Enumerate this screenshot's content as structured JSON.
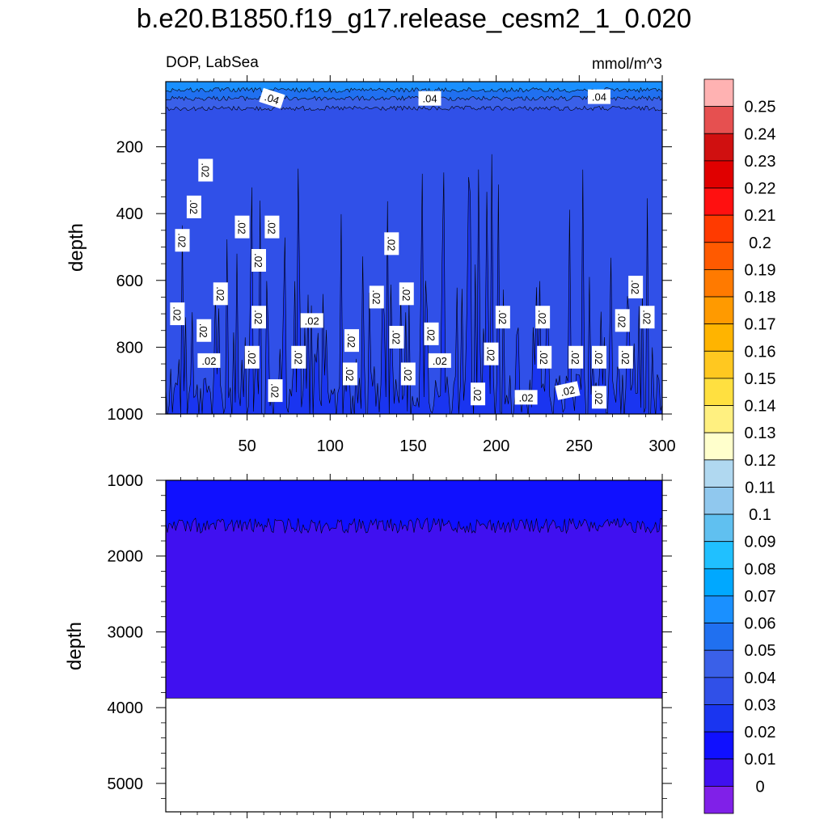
{
  "title": "b.e20.B1850.f19_g17.release_cesm2_1_0.020",
  "chart_data": [
    {
      "type": "contour",
      "panel": "top",
      "left_string": "DOP, LabSea",
      "right_string": "mmol/m^3",
      "ylabel": "depth",
      "xlim": [
        1,
        300
      ],
      "ylim": [
        1000,
        5
      ],
      "y_reversed": true,
      "xticks": [
        50,
        100,
        150,
        200,
        250,
        300
      ],
      "yticks": [
        200,
        400,
        600,
        800,
        1000
      ],
      "fill_bands": [
        {
          "level": 0.06,
          "depth_from": 5,
          "depth_to": 30
        },
        {
          "level": 0.05,
          "depth_from": 30,
          "depth_to": 55
        },
        {
          "level": 0.04,
          "depth_from": 55,
          "depth_to": 85
        },
        {
          "level": 0.03,
          "depth_from": 85,
          "depth_to": 1000
        }
      ],
      "contour_labels": [
        {
          "text": ".04",
          "x": 65,
          "depth": 55
        },
        {
          "text": ".04",
          "x": 160,
          "depth": 55
        },
        {
          "text": ".04",
          "x": 262,
          "depth": 50
        },
        {
          "text": ".02",
          "x": 25,
          "depth": 270
        },
        {
          "text": ".02",
          "x": 18,
          "depth": 380
        },
        {
          "text": ".02",
          "x": 11,
          "depth": 480
        },
        {
          "text": ".02",
          "x": 47,
          "depth": 440
        },
        {
          "text": ".02",
          "x": 65,
          "depth": 440
        },
        {
          "text": ".02",
          "x": 57,
          "depth": 540
        },
        {
          "text": ".02",
          "x": 34,
          "depth": 640
        },
        {
          "text": ".02",
          "x": 8,
          "depth": 700
        },
        {
          "text": ".02",
          "x": 57,
          "depth": 710
        },
        {
          "text": ".02",
          "x": 24,
          "depth": 750
        },
        {
          "text": ".02",
          "x": 89,
          "depth": 720
        },
        {
          "text": ".02",
          "x": 128,
          "depth": 650
        },
        {
          "text": ".02",
          "x": 137,
          "depth": 490
        },
        {
          "text": ".02",
          "x": 146,
          "depth": 640
        },
        {
          "text": ".02",
          "x": 140,
          "depth": 770
        },
        {
          "text": ".02",
          "x": 161,
          "depth": 760
        },
        {
          "text": ".02",
          "x": 113,
          "depth": 780
        },
        {
          "text": ".02",
          "x": 27,
          "depth": 840
        },
        {
          "text": ".02",
          "x": 53,
          "depth": 830
        },
        {
          "text": ".02",
          "x": 81,
          "depth": 830
        },
        {
          "text": ".02",
          "x": 112,
          "depth": 880
        },
        {
          "text": ".02",
          "x": 147,
          "depth": 880
        },
        {
          "text": ".02",
          "x": 166,
          "depth": 840
        },
        {
          "text": ".02",
          "x": 67,
          "depth": 930
        },
        {
          "text": ".02",
          "x": 204,
          "depth": 710
        },
        {
          "text": ".02",
          "x": 228,
          "depth": 710
        },
        {
          "text": ".02",
          "x": 197,
          "depth": 820
        },
        {
          "text": ".02",
          "x": 229,
          "depth": 830
        },
        {
          "text": ".02",
          "x": 248,
          "depth": 830
        },
        {
          "text": ".02",
          "x": 262,
          "depth": 830
        },
        {
          "text": ".02",
          "x": 278,
          "depth": 830
        },
        {
          "text": ".02",
          "x": 284,
          "depth": 620
        },
        {
          "text": ".02",
          "x": 276,
          "depth": 720
        },
        {
          "text": ".02",
          "x": 291,
          "depth": 710
        },
        {
          "text": ".02",
          "x": 189,
          "depth": 940
        },
        {
          "text": ".02",
          "x": 218,
          "depth": 950
        },
        {
          "text": ".02",
          "x": 243,
          "depth": 930
        },
        {
          "text": ".02",
          "x": 262,
          "depth": 950
        }
      ]
    },
    {
      "type": "contour",
      "panel": "bottom",
      "ylabel": "depth",
      "xlim": [
        1,
        300
      ],
      "ylim": [
        5375,
        1000
      ],
      "y_reversed": true,
      "yticks": [
        1000,
        2000,
        3000,
        4000,
        5000
      ],
      "fill_bands": [
        {
          "level": 0.01,
          "depth_from": 1000,
          "depth_to": 1600
        },
        {
          "level": 0.0,
          "depth_from": 1600,
          "depth_to": 3875
        }
      ],
      "missing_below_depth": 3875
    }
  ],
  "colorbar": {
    "labels": [
      "0.25",
      "0.24",
      "0.23",
      "0.22",
      "0.21",
      "0.2",
      "0.19",
      "0.18",
      "0.17",
      "0.16",
      "0.15",
      "0.14",
      "0.13",
      "0.12",
      "0.11",
      "0.1",
      "0.09",
      "0.08",
      "0.07",
      "0.06",
      "0.05",
      "0.04",
      "0.03",
      "0.02",
      "0.01",
      "0"
    ],
    "colors": [
      "#ffb2b2",
      "#e65050",
      "#d01010",
      "#e00000",
      "#ff1010",
      "#ff3a00",
      "#ff5a00",
      "#ff7a00",
      "#ff9a00",
      "#ffb400",
      "#ffc820",
      "#ffe040",
      "#fff080",
      "#ffffcc",
      "#b0d8f0",
      "#90c8ee",
      "#60c0f0",
      "#20c0ff",
      "#00a8ff",
      "#1a90ff",
      "#2070f0",
      "#3a60e8",
      "#3050e8",
      "#1a35f0",
      "#1010ff",
      "#4010f0",
      "#8020e8"
    ]
  }
}
